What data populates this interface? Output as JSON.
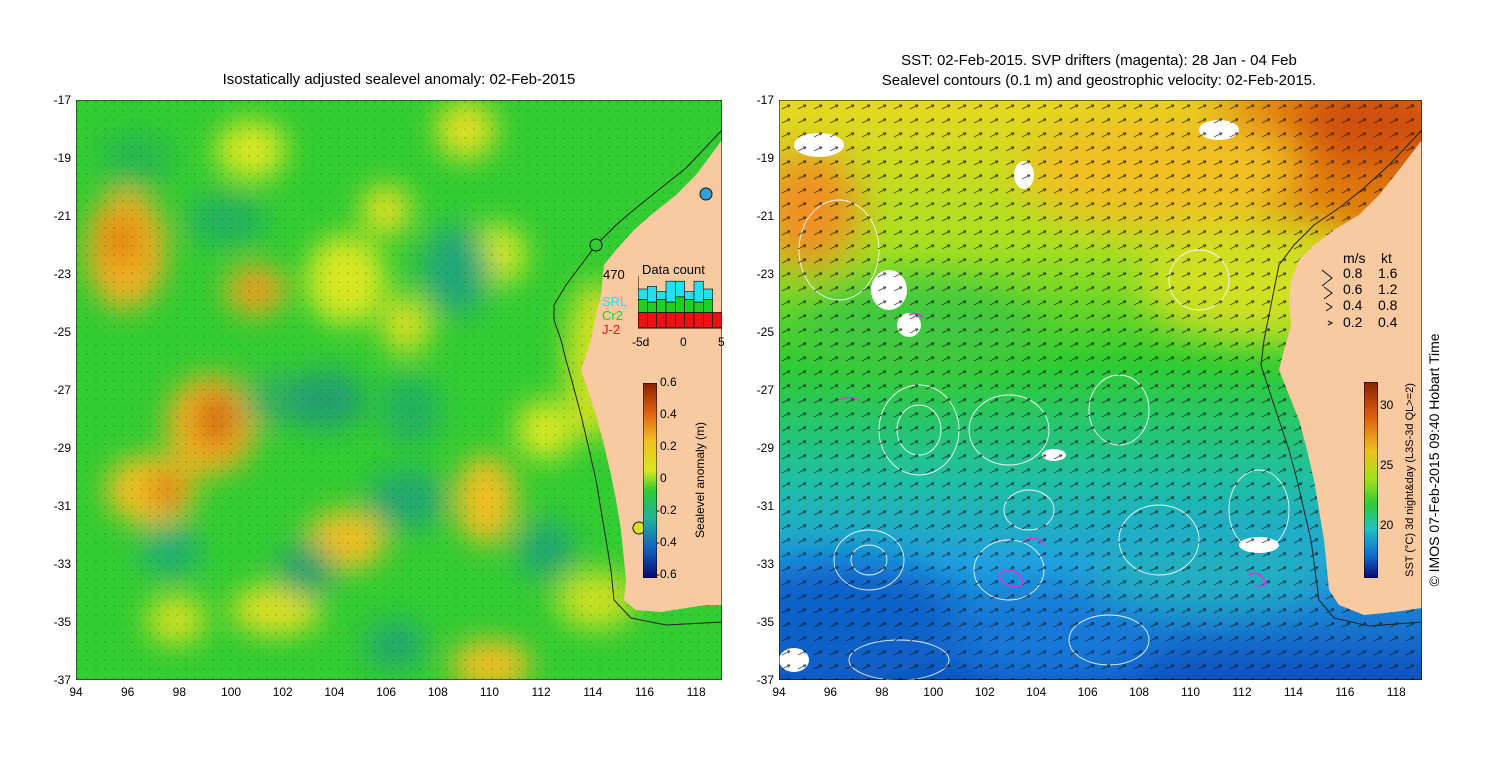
{
  "left_panel": {
    "title": "Isostatically adjusted sealevel anomaly: 02-Feb-2015",
    "colorbar_label": "Sealevel anomaly (m)",
    "colorbar_ticks": [
      "0.6",
      "0.4",
      "0.2",
      "0",
      "-0.2",
      "-0.4",
      "-0.6"
    ],
    "data_count": {
      "title": "Data count",
      "total": "470",
      "legend": [
        {
          "name": "SRL",
          "color": "#22e0f0"
        },
        {
          "name": "Cr2",
          "color": "#20d020"
        },
        {
          "name": "J-2",
          "color": "#ee1111"
        }
      ],
      "x_ticks": [
        "-5d",
        "0",
        "5"
      ],
      "bars": [
        {
          "j2": 0.3,
          "cr2": 0.25,
          "srl": 0.2
        },
        {
          "j2": 0.3,
          "cr2": 0.2,
          "srl": 0.3
        },
        {
          "j2": 0.3,
          "cr2": 0.25,
          "srl": 0.15
        },
        {
          "j2": 0.3,
          "cr2": 0.2,
          "srl": 0.4
        },
        {
          "j2": 0.3,
          "cr2": 0.3,
          "srl": 0.3
        },
        {
          "j2": 0.3,
          "cr2": 0.25,
          "srl": 0.15
        },
        {
          "j2": 0.3,
          "cr2": 0.2,
          "srl": 0.4
        },
        {
          "j2": 0.3,
          "cr2": 0.25,
          "srl": 0.2
        },
        {
          "j2": 0.3,
          "cr2": 0.0,
          "srl": 0.0
        }
      ]
    }
  },
  "right_panel": {
    "title_line1": "SST: 02-Feb-2015. SVP drifters (magenta): 28 Jan - 04 Feb",
    "title_line2": "Sealevel contours (0.1 m) and geostrophic velocity: 02-Feb-2015.",
    "colorbar_label": "SST (°C) 3d night&day (L3S-3d QL>=2)",
    "colorbar_ticks": [
      "30",
      "25",
      "20"
    ],
    "speed_legend": {
      "header_ms": "m/s",
      "header_kt": "kt",
      "rows": [
        {
          "ms": "0.8",
          "kt": "1.6"
        },
        {
          "ms": "0.6",
          "kt": "1.2"
        },
        {
          "ms": "0.4",
          "kt": "0.8"
        },
        {
          "ms": "0.2",
          "kt": "0.4"
        }
      ]
    }
  },
  "axes": {
    "x_ticks": [
      "94",
      "96",
      "98",
      "100",
      "102",
      "104",
      "106",
      "108",
      "110",
      "112",
      "114",
      "116",
      "118"
    ],
    "y_ticks": [
      "-17",
      "-19",
      "-21",
      "-23",
      "-25",
      "-27",
      "-29",
      "-31",
      "-33",
      "-35",
      "-37"
    ],
    "lon_range": [
      94,
      119
    ],
    "lat_range": [
      -37,
      -17
    ]
  },
  "credit": "© IMOS 07-Feb-2015 09:40 Hobart Time",
  "colors": {
    "land": "#f9c9a0",
    "sla_green": "#30cc30",
    "sst_yellow": "#e0e020",
    "sst_orange": "#e87a10",
    "sst_blue": "#2090e0",
    "drifter": "#dd33dd"
  }
}
